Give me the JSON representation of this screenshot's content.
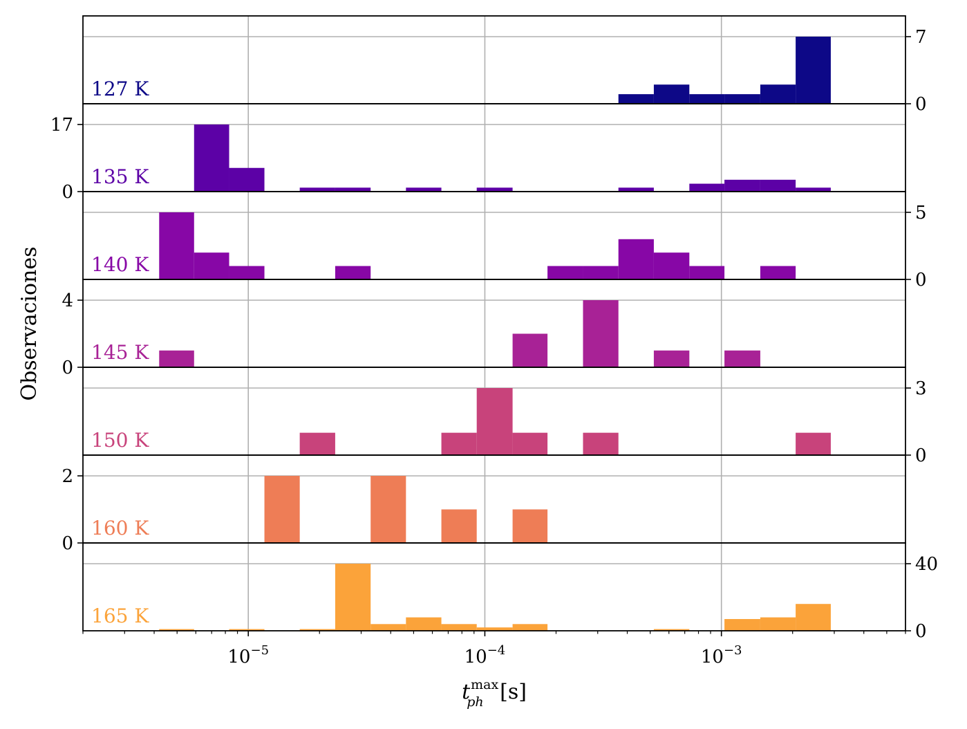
{
  "chart_data": {
    "type": "bar",
    "xscale": "log",
    "xlim": [
      2e-06,
      0.006
    ],
    "xticks": [
      {
        "value": 1e-05,
        "base": "10",
        "exp": "−5"
      },
      {
        "value": 0.0001,
        "base": "10",
        "exp": "−4"
      },
      {
        "value": 0.001,
        "base": "10",
        "exp": "−3"
      }
    ],
    "xlabel": {
      "t": "t",
      "sup": "max",
      "sub": "ph",
      "unit": " [s]"
    },
    "ylabel": "Observaciones",
    "grid": true,
    "bin_edges": [
      4.2e-06,
      5.9e-06,
      8.3e-06,
      1.17e-05,
      1.65e-05,
      2.33e-05,
      3.29e-05,
      4.64e-05,
      6.55e-05,
      9.24e-05,
      0.000131,
      0.000184,
      0.00026,
      0.000367,
      0.000518,
      0.000732,
      0.00103,
      0.00146,
      0.00206,
      0.0029
    ],
    "series": [
      {
        "name": "127 K",
        "color": "#0d0887",
        "ymax": 7,
        "ytick_side": "right",
        "yticks": [
          "0",
          "7"
        ],
        "counts": [
          0,
          0,
          0,
          0,
          0,
          0,
          0,
          0,
          0,
          0,
          0,
          0,
          0,
          1,
          2,
          1,
          1,
          2,
          7
        ]
      },
      {
        "name": "135 K",
        "color": "#5c01a6",
        "ymax": 17,
        "ytick_side": "left",
        "yticks": [
          "0",
          "17"
        ],
        "counts": [
          0,
          17,
          6,
          0,
          1,
          1,
          0,
          1,
          0,
          1,
          0,
          0,
          0,
          1,
          0,
          2,
          3,
          3,
          1
        ]
      },
      {
        "name": "140 K",
        "color": "#8707a6",
        "ymax": 5,
        "ytick_side": "right",
        "yticks": [
          "0",
          "5"
        ],
        "counts": [
          5,
          2,
          1,
          0,
          0,
          1,
          0,
          0,
          0,
          0,
          0,
          1,
          1,
          3,
          2,
          1,
          0,
          1,
          0
        ]
      },
      {
        "name": "145 K",
        "color": "#a82296",
        "ymax": 4,
        "ytick_side": "left",
        "yticks": [
          "0",
          "4"
        ],
        "counts": [
          1,
          0,
          0,
          0,
          0,
          0,
          0,
          0,
          0,
          0,
          2,
          0,
          4,
          0,
          1,
          0,
          1,
          0,
          0
        ]
      },
      {
        "name": "150 K",
        "color": "#c8437b",
        "ymax": 3,
        "ytick_side": "right",
        "yticks": [
          "0",
          "3"
        ],
        "counts": [
          0,
          0,
          0,
          0,
          1,
          0,
          0,
          0,
          1,
          3,
          1,
          0,
          1,
          0,
          0,
          0,
          0,
          0,
          1
        ]
      },
      {
        "name": "160 K",
        "color": "#ee7d56",
        "ymax": 2,
        "ytick_side": "left",
        "yticks": [
          "0",
          "2"
        ],
        "counts": [
          0,
          0,
          0,
          2,
          0,
          0,
          2,
          0,
          1,
          0,
          1,
          0,
          0,
          0,
          0,
          0,
          0,
          0,
          0
        ]
      },
      {
        "name": "165 K",
        "color": "#fba33a",
        "ymax": 40,
        "ytick_side": "right",
        "yticks": [
          "0",
          "40"
        ],
        "counts": [
          1,
          0,
          1,
          0,
          1,
          40,
          4,
          8,
          4,
          2,
          4,
          0,
          0,
          0,
          1,
          0,
          7,
          8,
          16
        ]
      }
    ]
  }
}
